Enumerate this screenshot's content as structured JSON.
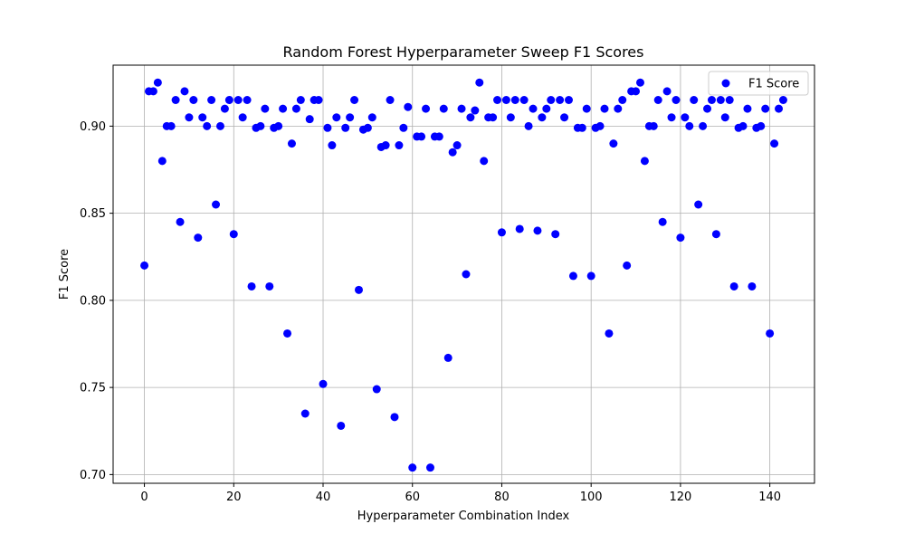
{
  "chart_data": {
    "type": "scatter",
    "title": "Random Forest Hyperparameter Sweep F1 Scores",
    "xlabel": "Hyperparameter Combination Index",
    "ylabel": "F1 Score",
    "xlim": [
      -7,
      150
    ],
    "ylim": [
      0.695,
      0.935
    ],
    "xticks": [
      0,
      20,
      40,
      60,
      80,
      100,
      120,
      140
    ],
    "yticks": [
      0.7,
      0.75,
      0.8,
      0.85,
      0.9
    ],
    "ytick_labels": [
      "0.70",
      "0.75",
      "0.80",
      "0.85",
      "0.90"
    ],
    "grid": true,
    "legend_position": "top-right",
    "series": [
      {
        "name": "F1 Score",
        "color": "#0000ff",
        "marker": "circle",
        "x": [
          0,
          1,
          2,
          3,
          4,
          5,
          6,
          7,
          8,
          9,
          10,
          11,
          12,
          13,
          14,
          15,
          16,
          17,
          18,
          19,
          20,
          21,
          22,
          23,
          24,
          25,
          26,
          27,
          28,
          29,
          30,
          31,
          32,
          33,
          34,
          35,
          36,
          37,
          38,
          39,
          40,
          41,
          42,
          43,
          44,
          45,
          46,
          47,
          48,
          49,
          50,
          51,
          52,
          53,
          54,
          55,
          56,
          57,
          58,
          59,
          60,
          61,
          62,
          63,
          64,
          65,
          66,
          67,
          68,
          69,
          70,
          71,
          72,
          73,
          74,
          75,
          76,
          77,
          78,
          79,
          80,
          81,
          82,
          83,
          84,
          85,
          86,
          87,
          88,
          89,
          90,
          91,
          92,
          93,
          94,
          95,
          96,
          97,
          98,
          99,
          100,
          101,
          102,
          103,
          104,
          105,
          106,
          107,
          108,
          109,
          110,
          111,
          112,
          113,
          114,
          115,
          116,
          117,
          118,
          119,
          120,
          121,
          122,
          123,
          124,
          125,
          126,
          127,
          128,
          129,
          130,
          131,
          132,
          133,
          134,
          135,
          136,
          137,
          138,
          139,
          140,
          141,
          142,
          143
        ],
        "y": [
          0.82,
          0.92,
          0.92,
          0.925,
          0.88,
          0.9,
          0.9,
          0.915,
          0.845,
          0.92,
          0.905,
          0.915,
          0.836,
          0.905,
          0.9,
          0.915,
          0.855,
          0.9,
          0.91,
          0.915,
          0.838,
          0.915,
          0.905,
          0.915,
          0.808,
          0.899,
          0.9,
          0.91,
          0.808,
          0.899,
          0.9,
          0.91,
          0.781,
          0.89,
          0.91,
          0.915,
          0.735,
          0.904,
          0.915,
          0.915,
          0.752,
          0.899,
          0.889,
          0.905,
          0.728,
          0.899,
          0.905,
          0.915,
          0.806,
          0.898,
          0.899,
          0.905,
          0.749,
          0.888,
          0.889,
          0.915,
          0.733,
          0.889,
          0.899,
          0.911,
          0.704,
          0.894,
          0.894,
          0.91,
          0.704,
          0.894,
          0.894,
          0.91,
          0.767,
          0.885,
          0.889,
          0.91,
          0.815,
          0.905,
          0.909,
          0.925,
          0.88,
          0.905,
          0.905,
          0.915,
          0.839,
          0.915,
          0.905,
          0.915,
          0.841,
          0.915,
          0.9,
          0.91,
          0.84,
          0.905,
          0.91,
          0.915,
          0.838,
          0.915,
          0.905,
          0.915,
          0.814,
          0.899,
          0.899,
          0.91,
          0.814,
          0.899,
          0.9,
          0.91,
          0.781,
          0.89,
          0.91,
          0.915,
          0.82,
          0.92,
          0.92,
          0.925,
          0.88,
          0.9,
          0.9,
          0.915,
          0.845,
          0.92,
          0.905,
          0.915,
          0.836,
          0.905,
          0.9,
          0.915,
          0.855,
          0.9,
          0.91,
          0.915,
          0.838,
          0.915,
          0.905,
          0.915,
          0.808,
          0.899,
          0.9,
          0.91,
          0.808,
          0.899,
          0.9,
          0.91,
          0.781,
          0.89,
          0.91,
          0.915
        ]
      }
    ]
  }
}
